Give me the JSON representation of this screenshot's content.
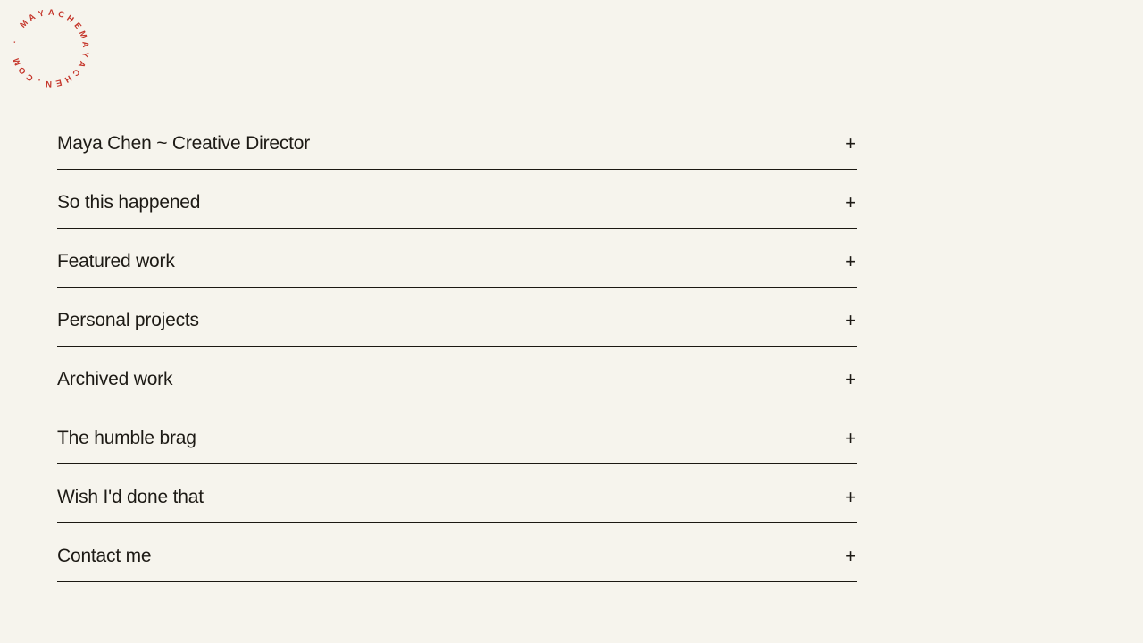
{
  "colors": {
    "background": "#f6f4ed",
    "text": "#1d1a15",
    "line": "#1b1812",
    "accent_red": "#c5362b"
  },
  "logo": {
    "ring_text": "MAYACHEMAYACHEN.COM · ",
    "color": "#c5362b"
  },
  "accordion": {
    "items": [
      {
        "label": "Maya Chen ~ Creative Director",
        "toggle": "+"
      },
      {
        "label": "So this happened",
        "toggle": "+"
      },
      {
        "label": "Featured work",
        "toggle": "+"
      },
      {
        "label": "Personal projects",
        "toggle": "+"
      },
      {
        "label": "Archived work",
        "toggle": "+"
      },
      {
        "label": "The humble brag",
        "toggle": "+"
      },
      {
        "label": "Wish I'd done that",
        "toggle": "+"
      },
      {
        "label": "Contact me",
        "toggle": "+"
      }
    ]
  }
}
